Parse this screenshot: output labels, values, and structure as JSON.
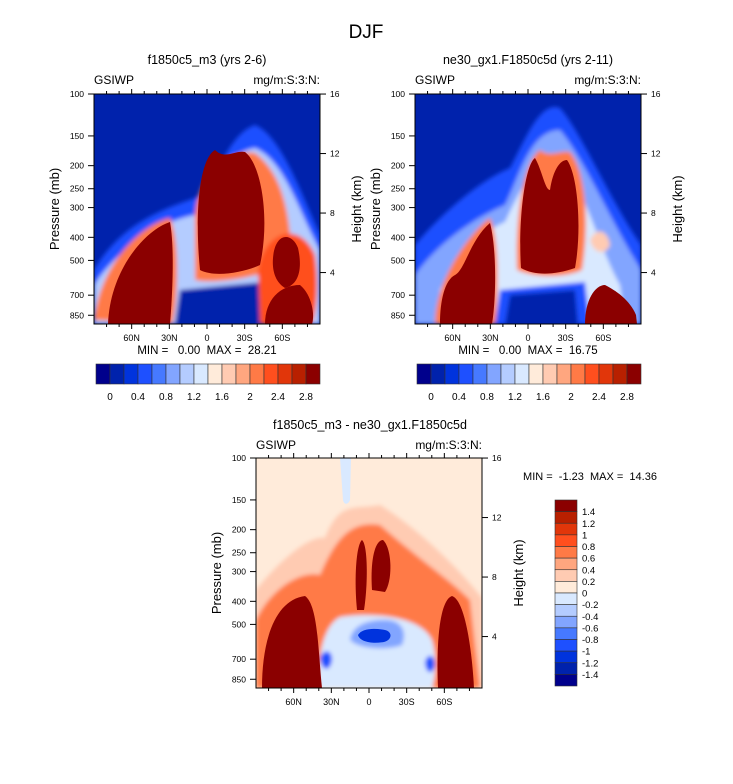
{
  "figure_title": "DJF",
  "colors": {
    "palette16": [
      "#00008c",
      "#0022ac",
      "#0033dd",
      "#1e50ff",
      "#4679ff",
      "#82a5ff",
      "#b4ccff",
      "#d9e9ff",
      "#ffebda",
      "#ffcbb2",
      "#ffa67f",
      "#ff7a46",
      "#ff4f1e",
      "#e1360a",
      "#b82000",
      "#8b0000"
    ]
  },
  "chart_data": [
    {
      "type": "heatmap",
      "id": "panel-1",
      "title": "f1850c5_m3 (yrs 2-6)",
      "left_label": "GSIWP",
      "right_label": "mg/m:S:3:N:",
      "xlabel": "",
      "ylabel": "Pressure (mb)",
      "y2label": "Height (km)",
      "x_ticks": [
        "60N",
        "30N",
        "0",
        "30S",
        "60S"
      ],
      "x_tick_values": [
        60,
        30,
        0,
        -30,
        -60
      ],
      "xlim": [
        90,
        -90
      ],
      "y_ticks": [
        100,
        150,
        200,
        250,
        300,
        400,
        500,
        700,
        850
      ],
      "ylim": [
        100,
        925
      ],
      "y2_ticks": [
        16,
        12,
        8,
        4
      ],
      "stats": "MIN =   0.00  MAX =  28.21",
      "min": 0.0,
      "max": 28.21,
      "colorbar": {
        "orientation": "horizontal",
        "levels": [
          0,
          0.2,
          0.4,
          0.6,
          0.8,
          1,
          1.2,
          1.4,
          1.6,
          1.8,
          2,
          2.2,
          2.4,
          2.6,
          2.8
        ],
        "labels": [
          "0",
          "0.4",
          "0.8",
          "1.2",
          "1.6",
          "2",
          "2.4",
          "2.8"
        ]
      },
      "features": [
        {
          "name": "northern mid-latitude maximum",
          "lat_range": [
            80,
            30
          ],
          "p_range": [
            400,
            925
          ],
          "value": ">2.8"
        },
        {
          "name": "tropical upper maximum",
          "lat_range": [
            17,
            -17
          ],
          "p_range": [
            185,
            520
          ],
          "value": ">2.8"
        },
        {
          "name": "southern mid-latitude maximum",
          "lat_range": [
            -40,
            -80
          ],
          "p_range": [
            400,
            925
          ],
          "value": ">2.8"
        }
      ]
    },
    {
      "type": "heatmap",
      "id": "panel-2",
      "title": "ne30_gx1.F1850c5d (yrs 2-11)",
      "left_label": "GSIWP",
      "right_label": "mg/m:S:3:N:",
      "ylabel": "Pressure (mb)",
      "y2label": "Height (km)",
      "x_ticks": [
        "60N",
        "30N",
        "0",
        "30S",
        "60S"
      ],
      "x_tick_values": [
        60,
        30,
        0,
        -30,
        -60
      ],
      "xlim": [
        90,
        -90
      ],
      "y_ticks": [
        100,
        150,
        200,
        250,
        300,
        400,
        500,
        700,
        850
      ],
      "ylim": [
        100,
        925
      ],
      "y2_ticks": [
        16,
        12,
        8,
        4
      ],
      "stats": "MIN =   0.00  MAX =  16.75",
      "min": 0.0,
      "max": 16.75,
      "colorbar": {
        "orientation": "horizontal",
        "levels": [
          0,
          0.2,
          0.4,
          0.6,
          0.8,
          1,
          1.2,
          1.4,
          1.6,
          1.8,
          2,
          2.2,
          2.4,
          2.6,
          2.8
        ],
        "labels": [
          "0",
          "0.4",
          "0.8",
          "1.2",
          "1.6",
          "2",
          "2.4",
          "2.8"
        ]
      },
      "features": [
        {
          "name": "northern mid-latitude maximum",
          "lat_range": [
            75,
            30
          ],
          "p_range": [
            380,
            925
          ],
          "value": ">2.8"
        },
        {
          "name": "tropical upper maximum",
          "lat_range": [
            15,
            -15
          ],
          "p_range": [
            180,
            520
          ],
          "value": ">2.8"
        },
        {
          "name": "southern low-level maximum",
          "lat_range": [
            -40,
            -80
          ],
          "p_range": [
            650,
            925
          ],
          "value": ">2.8"
        }
      ]
    },
    {
      "type": "heatmap",
      "id": "panel-diff",
      "title": "f1850c5_m3 - ne30_gx1.F1850c5d",
      "left_label": "GSIWP",
      "right_label": "mg/m:S:3:N:",
      "ylabel": "Pressure (mb)",
      "y2label": "Height (km)",
      "x_ticks": [
        "60N",
        "30N",
        "0",
        "30S",
        "60S"
      ],
      "x_tick_values": [
        60,
        30,
        0,
        -30,
        -60
      ],
      "xlim": [
        90,
        -90
      ],
      "y_ticks": [
        100,
        150,
        200,
        250,
        300,
        400,
        500,
        700,
        850
      ],
      "ylim": [
        100,
        925
      ],
      "y2_ticks": [
        16,
        12,
        8,
        4
      ],
      "stats": "MIN =  -1.23  MAX =  14.36",
      "min": -1.23,
      "max": 14.36,
      "colorbar": {
        "orientation": "vertical",
        "levels": [
          -1.4,
          -1.2,
          -1,
          -0.8,
          -0.6,
          -0.4,
          -0.2,
          0,
          0.2,
          0.4,
          0.6,
          0.8,
          1,
          1.2,
          1.4
        ],
        "labels": [
          "1.4",
          "1.2",
          "1",
          "0.8",
          "0.6",
          "0.4",
          "0.2",
          "0",
          "-0.2",
          "-0.4",
          "-0.6",
          "-0.8",
          "-1",
          "-1.2",
          "-1.4"
        ]
      },
      "features": [
        {
          "name": "northern positive difference",
          "lat_range": [
            85,
            30
          ],
          "p_range": [
            400,
            925
          ],
          "value": ">1.4"
        },
        {
          "name": "tropical positive difference",
          "lat_range": [
            12,
            -12
          ],
          "p_range": [
            200,
            450
          ],
          "value": ">1.4"
        },
        {
          "name": "southern positive difference",
          "lat_range": [
            -45,
            -80
          ],
          "p_range": [
            420,
            925
          ],
          "value": ">1.4"
        },
        {
          "name": "tropical negative difference",
          "lat_range": [
            15,
            -15
          ],
          "p_range": [
            480,
            600
          ],
          "value": "-1"
        },
        {
          "name": "northern subtropical negative",
          "lat_range": [
            40,
            25
          ],
          "p_range": [
            620,
            850
          ],
          "value": "-1"
        },
        {
          "name": "southern subtropical negative",
          "lat_range": [
            -35,
            -48
          ],
          "p_range": [
            620,
            850
          ],
          "value": "-1"
        }
      ]
    }
  ]
}
